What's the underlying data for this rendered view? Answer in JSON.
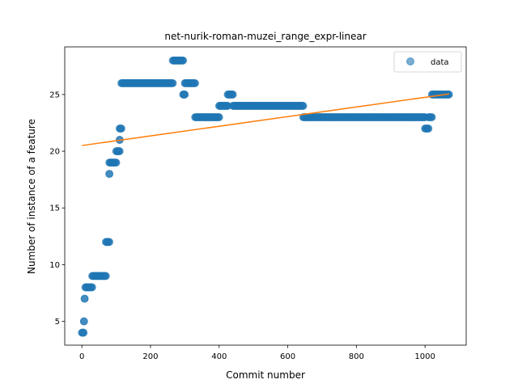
{
  "chart_data": {
    "type": "scatter",
    "title": "net-nurik-roman-muzei_range_expr-linear",
    "xlabel": "Commit number",
    "ylabel": "Number of instance of a feature",
    "xlim": [
      -50,
      1120
    ],
    "ylim": [
      2.9,
      29.2
    ],
    "xticks": [
      0,
      200,
      400,
      600,
      800,
      1000
    ],
    "yticks": [
      5,
      10,
      15,
      20,
      25
    ],
    "legend": {
      "position": "top-right",
      "entries": [
        "data"
      ]
    },
    "colors": {
      "points": "#1f77b4",
      "fit": "#ff7f0e"
    },
    "series": [
      {
        "name": "data",
        "segments": [
          {
            "x": [
              0,
              5
            ],
            "y": 4
          },
          {
            "x": [
              6,
              6
            ],
            "y": 5
          },
          {
            "x": [
              8,
              8
            ],
            "y": 7
          },
          {
            "x": [
              10,
              30
            ],
            "y": 8
          },
          {
            "x": [
              30,
              70
            ],
            "y": 9
          },
          {
            "x": [
              70,
              80
            ],
            "y": 12
          },
          {
            "x": [
              80,
              80
            ],
            "y": 18
          },
          {
            "x": [
              80,
              100
            ],
            "y": 19
          },
          {
            "x": [
              100,
              110
            ],
            "y": 20
          },
          {
            "x": [
              110,
              110
            ],
            "y": 21
          },
          {
            "x": [
              110,
              115
            ],
            "y": 22
          },
          {
            "x": [
              115,
              265
            ],
            "y": 26
          },
          {
            "x": [
              265,
              295
            ],
            "y": 28
          },
          {
            "x": [
              295,
              300
            ],
            "y": 25
          },
          {
            "x": [
              300,
              330
            ],
            "y": 26
          },
          {
            "x": [
              330,
              400
            ],
            "y": 23
          },
          {
            "x": [
              400,
              425
            ],
            "y": 24
          },
          {
            "x": [
              425,
              440
            ],
            "y": 25
          },
          {
            "x": [
              440,
              645
            ],
            "y": 24
          },
          {
            "x": [
              645,
              1000
            ],
            "y": 23
          },
          {
            "x": [
              1000,
              1010
            ],
            "y": 22
          },
          {
            "x": [
              1010,
              1020
            ],
            "y": 23
          },
          {
            "x": [
              1020,
              1070
            ],
            "y": 25
          }
        ]
      },
      {
        "name": "",
        "line": true,
        "x": [
          0,
          1070
        ],
        "y": [
          20.5,
          25.05
        ]
      }
    ]
  }
}
